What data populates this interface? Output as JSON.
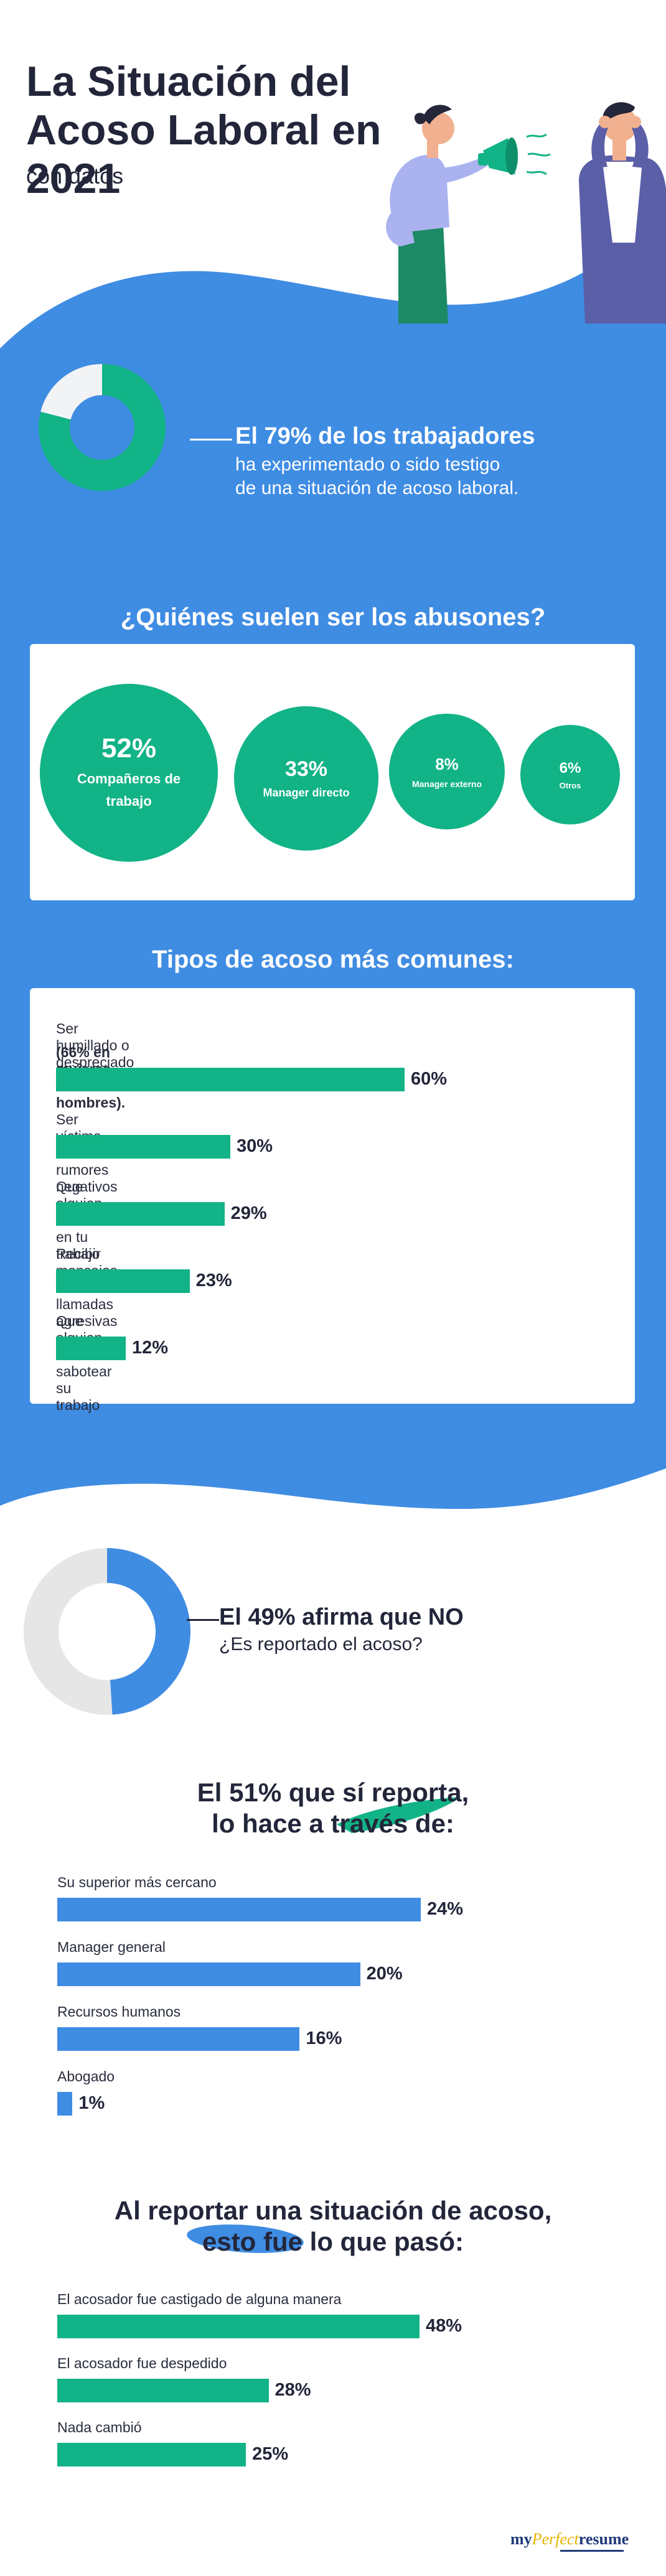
{
  "header": {
    "title": "La Situación del Acoso Laboral en 2021",
    "subtitle": "con datos"
  },
  "colors": {
    "blue": "#3f8ce3",
    "green": "#12b386",
    "light_gray": "#e6e6e6",
    "dark_text": "#23263a"
  },
  "witness_stat": {
    "headline": "El 79% de los trabajadores",
    "line1": "ha experimentado o sido testigo",
    "line2": "de una situación de acoso laboral."
  },
  "abusers_section": {
    "heading": "¿Quiénes suelen ser los abusones?"
  },
  "types_section": {
    "heading": "Tipos de acoso más comunes:"
  },
  "report_stat": {
    "headline": "El 49% afirma que NO",
    "question": "¿Es reportado el acoso?"
  },
  "channels_section": {
    "line1": "El 51% que sí reporta,",
    "line2": "lo hace a través de:"
  },
  "outcomes_section": {
    "line1": "Al reportar una situación de acoso,",
    "line2": "esto fue lo que pasó:"
  },
  "brand": {
    "my": "my",
    "perfect": "Perfect",
    "resume": "resume"
  },
  "chart_data": [
    {
      "type": "pie",
      "id": "witness_donut",
      "slices": [
        {
          "value": 79,
          "color": "#12b386"
        },
        {
          "value": 21,
          "color": "#f2f3f5"
        }
      ]
    },
    {
      "type": "bubble",
      "id": "abusers",
      "items": [
        {
          "value": "52%",
          "label": "Compañeros de trabajo",
          "size": 52
        },
        {
          "value": "33%",
          "label": "Manager directo",
          "size": 33
        },
        {
          "value": "8%",
          "label": "Manager externo",
          "size": 8
        },
        {
          "value": "6%",
          "label": "Otros",
          "size": 6
        }
      ]
    },
    {
      "type": "bar",
      "id": "harassment_types",
      "max": 60,
      "categories": [
        "Ser humillado o despreciado regularmente",
        "Ser víctima de rumores negativos",
        "Que alguien interfiera en tu trabajo",
        "Recibir mensajes, emails o llamadas agresivas",
        "Que alguien intente sabotear su trabajo"
      ],
      "notes": [
        "(66% en mujeres, 55% en hombres).",
        "",
        "",
        "",
        ""
      ],
      "values": [
        60,
        30,
        29,
        23,
        12
      ],
      "labels": [
        "60%",
        "30%",
        "29%",
        "23%",
        "12%"
      ]
    },
    {
      "type": "pie",
      "id": "report_donut",
      "slices": [
        {
          "value": 49,
          "color": "#3f8ce3"
        },
        {
          "value": 51,
          "color": "#e6e6e6"
        }
      ]
    },
    {
      "type": "bar",
      "id": "report_channels",
      "max": 24,
      "categories": [
        "Su superior más cercano",
        "Manager general",
        "Recursos humanos",
        "Abogado"
      ],
      "values": [
        24,
        20,
        16,
        1
      ],
      "labels": [
        "24%",
        "20%",
        "16%",
        "1%"
      ]
    },
    {
      "type": "bar",
      "id": "outcomes",
      "max": 48,
      "categories": [
        "El acosador fue castigado de alguna manera",
        "El acosador fue despedido",
        "Nada cambió"
      ],
      "values": [
        48,
        28,
        25
      ],
      "labels": [
        "48%",
        "28%",
        "25%"
      ]
    }
  ]
}
